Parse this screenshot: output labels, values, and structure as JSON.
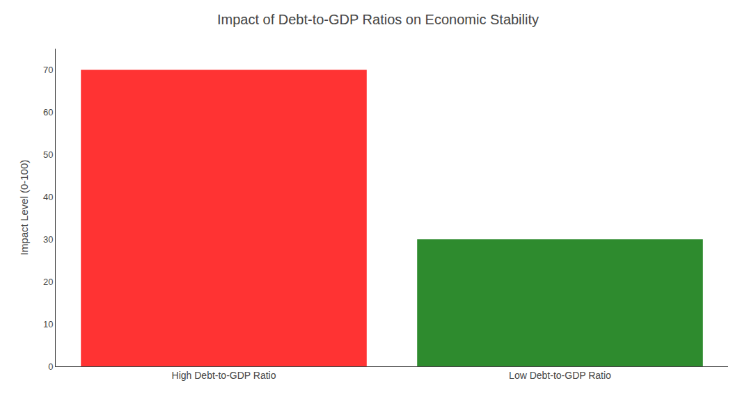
{
  "chart_data": {
    "type": "bar",
    "title": "Impact of Debt-to-GDP Ratios on Economic Stability",
    "ylabel": "Impact Level (0-100)",
    "categories": [
      "High Debt-to-GDP Ratio",
      "Low Debt-to-GDP Ratio"
    ],
    "values": [
      70,
      30
    ],
    "colors": [
      "#ff3333",
      "#2e8b2e"
    ],
    "ylim": [
      0,
      75
    ],
    "yticks": [
      0,
      10,
      20,
      30,
      40,
      50,
      60,
      70
    ],
    "grid": false
  }
}
